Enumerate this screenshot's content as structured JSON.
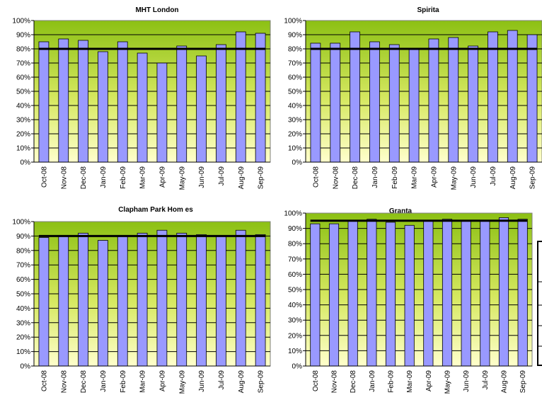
{
  "chart_data": [
    {
      "type": "bar",
      "title": "MHT London",
      "categories": [
        "Oct-08",
        "Nov-08",
        "Dec-08",
        "Jan-09",
        "Feb-09",
        "Mar-09",
        "Apr-09",
        "May-09",
        "Jun-09",
        "Jul-09",
        "Aug-09",
        "Sep-09"
      ],
      "values": [
        85,
        87,
        86,
        78,
        85,
        77,
        70,
        82,
        75,
        83,
        92,
        91
      ],
      "target": 80,
      "ylim": [
        0,
        100
      ],
      "yticks": [
        "0%",
        "10%",
        "20%",
        "30%",
        "40%",
        "50%",
        "60%",
        "70%",
        "80%",
        "90%",
        "100%"
      ],
      "colors": {
        "bar": "#9999ff",
        "plot_top": "#8cc014",
        "plot_bottom": "#ffffcc",
        "target_line": "#000000"
      }
    },
    {
      "type": "bar",
      "title": "Spirita",
      "categories": [
        "Oct-08",
        "Nov-08",
        "Dec-08",
        "Jan-09",
        "Feb-09",
        "Mar-09",
        "Apr-09",
        "May-09",
        "Jun-09",
        "Jul-09",
        "Aug-09",
        "Sep-09"
      ],
      "values": [
        84,
        84,
        92,
        85,
        83,
        80,
        87,
        88,
        82,
        92,
        93,
        90
      ],
      "target": 80,
      "ylim": [
        0,
        100
      ],
      "yticks": [
        "0%",
        "10%",
        "20%",
        "30%",
        "40%",
        "50%",
        "60%",
        "70%",
        "80%",
        "90%",
        "100%"
      ],
      "colors": {
        "bar": "#9999ff",
        "plot_top": "#8cc014",
        "plot_bottom": "#ffffcc",
        "target_line": "#000000"
      }
    },
    {
      "type": "bar",
      "title": "Clapham Park Hom es",
      "categories": [
        "Oct-08",
        "Nov-08",
        "Dec-08",
        "Jan-09",
        "Feb-09",
        "Mar-09",
        "Apr-09",
        "May-09",
        "Jun-09",
        "Jul-09",
        "Aug-09",
        "Sep-09"
      ],
      "values": [
        89,
        90,
        92,
        87,
        90,
        92,
        94,
        92,
        91,
        90,
        94,
        91
      ],
      "target": 90,
      "ylim": [
        0,
        100
      ],
      "yticks": [
        "0%",
        "10%",
        "20%",
        "30%",
        "40%",
        "50%",
        "60%",
        "70%",
        "80%",
        "90%",
        "100%"
      ],
      "colors": {
        "bar": "#9999ff",
        "plot_top": "#8cc014",
        "plot_bottom": "#ffffcc",
        "target_line": "#000000"
      }
    },
    {
      "type": "bar",
      "title": "Granta",
      "categories": [
        "Oct-08",
        "Nov-08",
        "Dec-08",
        "Jan-09",
        "Feb-09",
        "Mar-09",
        "Apr-09",
        "May-09",
        "Jun-09",
        "Jul-09",
        "Aug-09",
        "Sep-09"
      ],
      "values": [
        93,
        93,
        95,
        96,
        94,
        92,
        95,
        96,
        95,
        95,
        97,
        96
      ],
      "target": 95,
      "ylim": [
        0,
        100
      ],
      "yticks": [
        "0%",
        "10%",
        "20%",
        "30%",
        "40%",
        "50%",
        "60%",
        "70%",
        "80%",
        "90%",
        "100%"
      ],
      "colors": {
        "bar": "#9999ff",
        "plot_top": "#8cc014",
        "plot_bottom": "#ffffcc",
        "target_line": "#000000"
      }
    }
  ]
}
